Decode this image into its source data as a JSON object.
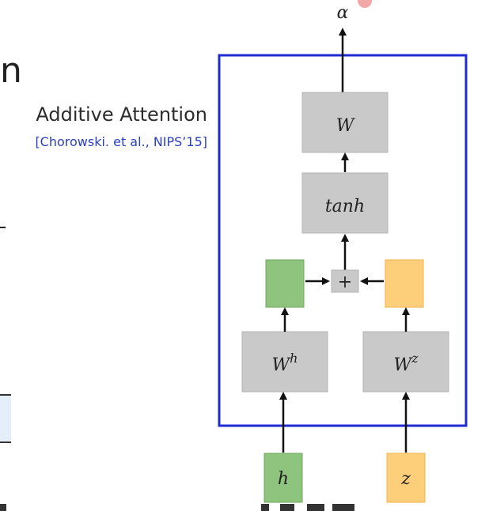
{
  "caption": {
    "title": "Additive Attention",
    "citation": "[Chorowski. et al., NIPS’15]"
  },
  "edge_fragments": {
    "left_glyph": "n"
  },
  "diagram": {
    "output": "α",
    "nodes": {
      "W": "W",
      "tanh": "tanh",
      "plus": "+",
      "Wh_base": "W",
      "Wh_sup": "h",
      "Wz_base": "W",
      "Wz_sup": "z",
      "h": "h",
      "z": "z"
    },
    "colors": {
      "frame": "#1f2bd0",
      "gray_box": "#c9c9c9",
      "gray_border": "#b3b3b3",
      "green_fill": "#8fc47e",
      "green_border": "#6fa85d",
      "orange_fill": "#fdcf7a",
      "orange_border": "#f2b34d",
      "arrow": "#111111"
    }
  }
}
